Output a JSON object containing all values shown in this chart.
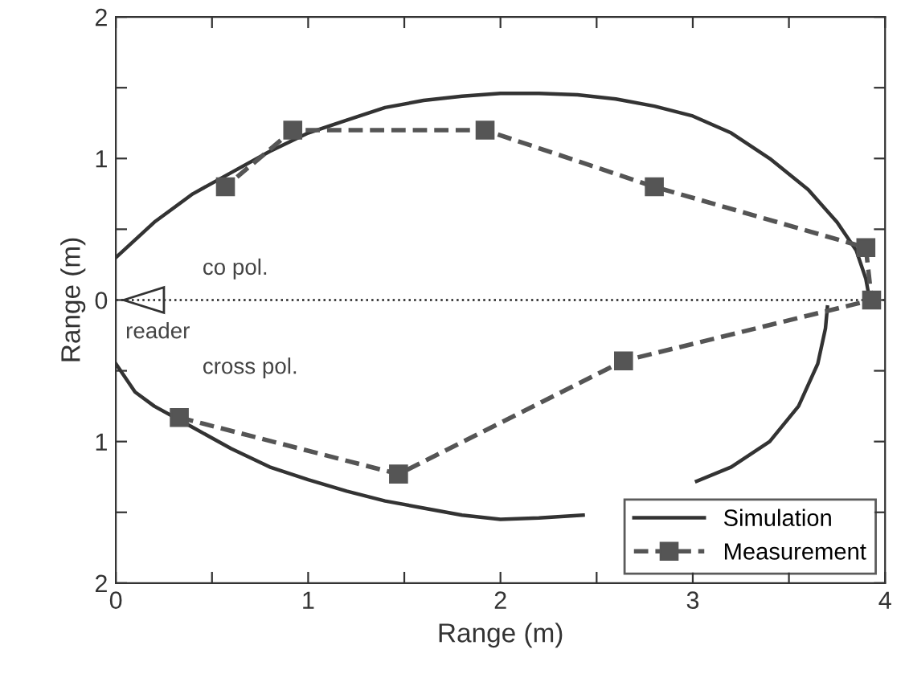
{
  "chart_data": {
    "type": "line",
    "xlabel": "Range (m)",
    "ylabel": "Range (m)",
    "xlim": [
      0,
      4
    ],
    "ylim": [
      -2,
      2
    ],
    "xticks": [
      0,
      {
        "value": 0.5,
        "label": null
      },
      1,
      {
        "value": 1.5,
        "label": null
      },
      2,
      {
        "value": 2.5,
        "label": null
      },
      3,
      {
        "value": 3.5,
        "label": null
      },
      4
    ],
    "yticks": [
      {
        "value": -2,
        "label": "2"
      },
      {
        "value": -1.5,
        "label": null
      },
      {
        "value": -1,
        "label": "1"
      },
      {
        "value": -0.5,
        "label": null
      },
      0,
      {
        "value": 0.5,
        "label": null
      },
      1,
      {
        "value": 1.5,
        "label": null
      },
      2
    ],
    "grid": false,
    "legend": "bottom right",
    "ref_lines": [
      {
        "axis": "y",
        "value": 0,
        "color": "#222222",
        "line_style": "dotted"
      }
    ],
    "annotations": [
      "co pol.",
      "reader",
      "cross pol."
    ],
    "series": [
      {
        "name": "Simulation",
        "color": "#333333",
        "marker": "none",
        "line_style": "solid",
        "x": [
          0,
          0.2,
          0.4,
          0.6,
          0.8,
          1.0,
          1.2,
          1.4,
          1.6,
          1.8,
          2.0,
          2.2,
          2.4,
          2.6,
          2.8,
          3.0,
          3.2,
          3.4,
          3.6,
          3.75,
          3.85,
          3.9,
          3.92,
          null,
          0,
          0.1,
          0.2,
          0.4,
          0.6,
          0.8,
          1.0,
          1.2,
          1.4,
          1.6,
          1.8,
          2.0,
          2.2,
          2.43,
          2.7,
          3.02,
          3.2,
          3.4,
          3.55,
          3.65,
          3.69,
          3.7
        ],
        "values": [
          0.3,
          0.55,
          0.75,
          0.9,
          1.05,
          1.18,
          1.27,
          1.36,
          1.41,
          1.44,
          1.46,
          1.46,
          1.45,
          1.42,
          1.37,
          1.3,
          1.18,
          1.0,
          0.78,
          0.55,
          0.35,
          0.15,
          0.0,
          null,
          -0.45,
          -0.65,
          -0.75,
          -0.9,
          -1.05,
          -1.18,
          -1.27,
          -1.35,
          -1.42,
          -1.47,
          -1.52,
          -1.55,
          -1.54,
          -1.52,
          null,
          -1.28,
          -1.18,
          -1.0,
          -0.75,
          -0.45,
          -0.2,
          -0.05
        ]
      },
      {
        "name": "Measurement",
        "color": "#555555",
        "marker": "square",
        "line_style": "dashed",
        "x": [
          0.33,
          1.47,
          2.64,
          3.93,
          3.9,
          2.8,
          1.92,
          0.92,
          0.57
        ],
        "values": [
          -0.83,
          -1.23,
          -0.43,
          0,
          0.37,
          0.8,
          1.2,
          1.2,
          0.8
        ]
      }
    ]
  }
}
